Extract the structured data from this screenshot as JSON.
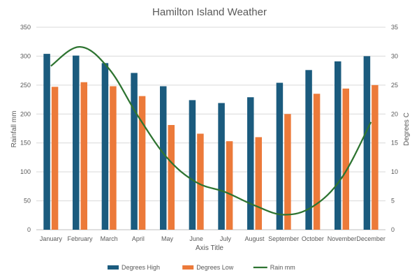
{
  "chart_data": {
    "type": "bar",
    "title": "Hamilton Island Weather",
    "categories": [
      "January",
      "February",
      "March",
      "April",
      "May",
      "June",
      "July",
      "August",
      "September",
      "October",
      "November",
      "December"
    ],
    "xlabel": "Axis Title",
    "ylabel": "Rainfall mm",
    "y2label": "Degrees C",
    "ylim": [
      0,
      350
    ],
    "y2lim": [
      0,
      35
    ],
    "yticks": [
      0,
      50,
      100,
      150,
      200,
      250,
      300,
      350
    ],
    "y2ticks": [
      0,
      5,
      10,
      15,
      20,
      25,
      30,
      35
    ],
    "grid": true,
    "legend_position": "bottom",
    "series": [
      {
        "name": "Degrees High",
        "type": "bar",
        "axis": "y",
        "color": "#1b5b7e",
        "values": [
          304,
          301,
          288,
          271,
          248,
          224,
          219,
          229,
          254,
          276,
          291,
          300
        ]
      },
      {
        "name": "Degrees Low",
        "type": "bar",
        "axis": "y",
        "color": "#ec7a3a",
        "values": [
          247,
          255,
          248,
          231,
          181,
          166,
          153,
          160,
          200,
          235,
          244,
          250
        ]
      },
      {
        "name": "Rain mm",
        "type": "line",
        "axis": "y2",
        "color": "#2e7431",
        "values": [
          28.3,
          31.6,
          27.8,
          19.6,
          12.4,
          8.2,
          6.5,
          4.2,
          2.6,
          4.0,
          9.0,
          18.6
        ]
      }
    ]
  }
}
